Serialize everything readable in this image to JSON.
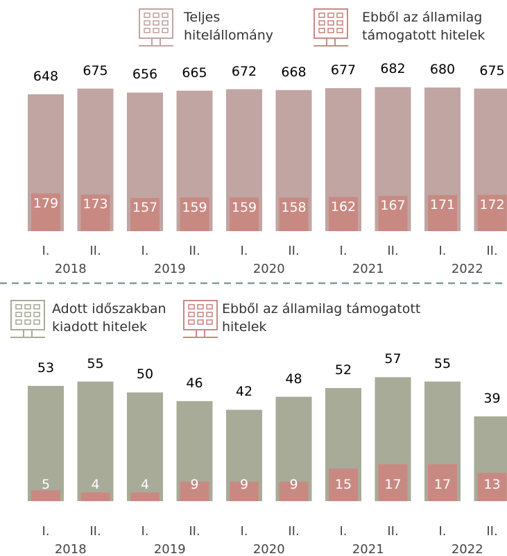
{
  "chart_data": [
    {
      "type": "bar",
      "categories": [
        "I.",
        "II.",
        "I.",
        "II.",
        "I.",
        "II.",
        "I.",
        "II.",
        "I.",
        "II."
      ],
      "years": [
        "2018",
        "2019",
        "2020",
        "2021",
        "2022"
      ],
      "ylim": [
        0,
        700
      ],
      "series": [
        {
          "name": "Teljes hitelállomány",
          "color": "#c0a5a2",
          "values": [
            648,
            675,
            656,
            665,
            672,
            668,
            677,
            682,
            680,
            675
          ]
        },
        {
          "name": "Ebből az államilag támogatott hitelek",
          "color": "#c98983",
          "values": [
            179,
            173,
            157,
            159,
            159,
            158,
            162,
            167,
            171,
            172
          ]
        }
      ]
    },
    {
      "type": "bar",
      "categories": [
        "I.",
        "II.",
        "I.",
        "II.",
        "I.",
        "II.",
        "I.",
        "II.",
        "I.",
        "II."
      ],
      "years": [
        "2018",
        "2019",
        "2020",
        "2021",
        "2022"
      ],
      "ylim": [
        0,
        60
      ],
      "series": [
        {
          "name": "Adott időszakban kiadott hitelek",
          "color": "#a8ab98",
          "values": [
            53,
            55,
            50,
            46,
            42,
            48,
            52,
            57,
            55,
            39
          ]
        },
        {
          "name": "Ebből az államilag támogatott hitelek",
          "color": "#c98983",
          "values": [
            5,
            4,
            4,
            9,
            9,
            9,
            15,
            17,
            17,
            13
          ]
        }
      ]
    }
  ]
}
